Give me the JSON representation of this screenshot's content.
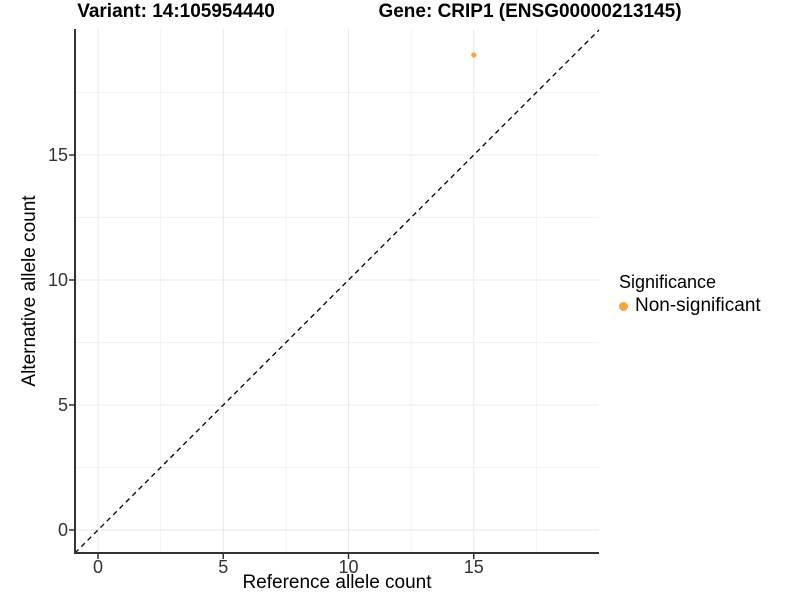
{
  "titles": {
    "variant": "Variant: 14:105954440",
    "gene": "Gene: CRIP1 (ENSG00000213145)"
  },
  "axes": {
    "x_label": "Reference allele count",
    "y_label": "Alternative allele count"
  },
  "legend": {
    "title": "Significance",
    "items": [
      {
        "label": "Non-significant",
        "color": "#F9A43B"
      }
    ]
  },
  "colors": {
    "grid_major": "#E8E8E8",
    "grid_minor": "#F3F3F3",
    "axis_line": "#333333",
    "tick_mark": "#333333",
    "tick_text": "#333333",
    "point": "#F9A43B",
    "identity_line": "#000000"
  },
  "chart_data": {
    "type": "scatter",
    "title": "Variant: 14:105954440 — Gene: CRIP1 (ENSG00000213145)",
    "xlabel": "Reference allele count",
    "ylabel": "Alternative allele count",
    "xlim": [
      -0.92,
      20.0
    ],
    "ylim": [
      -0.92,
      20.04
    ],
    "x_ticks": [
      0,
      5,
      10,
      15
    ],
    "y_ticks": [
      0,
      5,
      10,
      15
    ],
    "minor_ticks_x": [
      2.5,
      7.5,
      12.5,
      17.5
    ],
    "minor_ticks_y": [
      2.5,
      7.5,
      12.5,
      17.5
    ],
    "grid": true,
    "legend_position": "right",
    "series": [
      {
        "name": "Non-significant",
        "color": "#F9A43B",
        "points": [
          {
            "x": 15,
            "y": 19
          }
        ]
      }
    ],
    "reference_line": {
      "type": "identity",
      "equation": "y = x",
      "style": "dashed",
      "color": "#000000"
    }
  }
}
